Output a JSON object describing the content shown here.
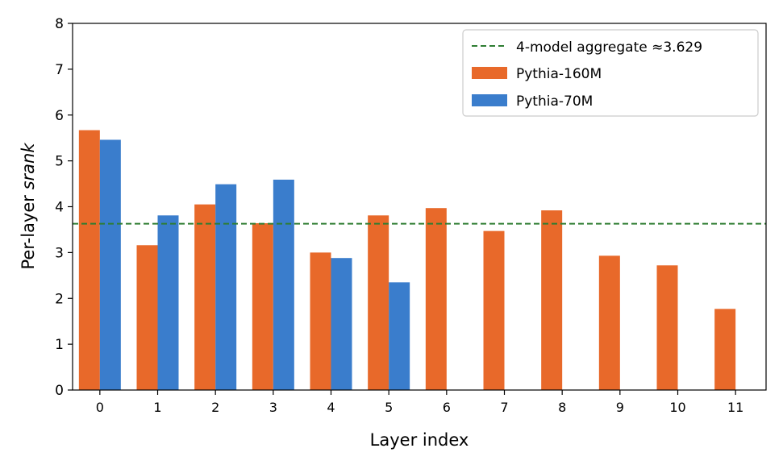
{
  "chart_data": {
    "type": "bar",
    "xlabel": "Layer index",
    "ylabel_prefix": "Per-layer ",
    "ylabel_italic": "srank",
    "categories": [
      "0",
      "1",
      "2",
      "3",
      "4",
      "5",
      "6",
      "7",
      "8",
      "9",
      "10",
      "11"
    ],
    "series": [
      {
        "name": "Pythia-160M",
        "color": "#e8692a",
        "values": [
          5.67,
          3.16,
          4.05,
          3.64,
          3.0,
          3.81,
          3.97,
          3.47,
          3.92,
          2.93,
          2.72,
          1.77
        ]
      },
      {
        "name": "Pythia-70M",
        "color": "#3a7dcc",
        "values": [
          5.46,
          3.81,
          4.49,
          4.59,
          2.88,
          2.35,
          null,
          null,
          null,
          null,
          null,
          null
        ]
      }
    ],
    "reference_line": {
      "label": "4-model aggregate ≈3.629",
      "value": 3.629,
      "color": "#2e7d32",
      "style": "dashed"
    },
    "ylim": [
      0,
      8
    ],
    "yticks": [
      "0",
      "1",
      "2",
      "3",
      "4",
      "5",
      "6",
      "7",
      "8"
    ],
    "legend_position": "top-right",
    "grid": false
  }
}
